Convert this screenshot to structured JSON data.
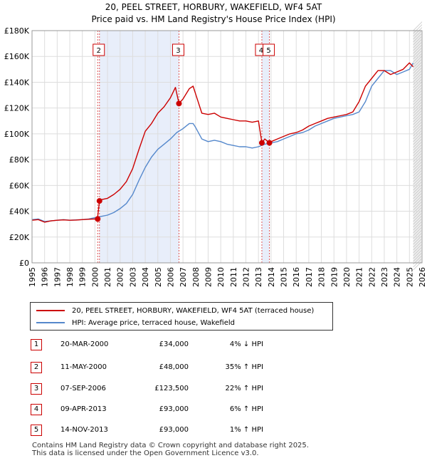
{
  "chart_data": {
    "type": "line",
    "title": "20, PEEL STREET, HORBURY, WAKEFIELD, WF4 5AT",
    "subtitle": "Price paid vs. HM Land Registry's House Price Index (HPI)",
    "x_ticks": [
      "1995",
      "1996",
      "1997",
      "1998",
      "1999",
      "2000",
      "2001",
      "2002",
      "2003",
      "2004",
      "2005",
      "2006",
      "2007",
      "2008",
      "2009",
      "2010",
      "2011",
      "2012",
      "2013",
      "2014",
      "2015",
      "2016",
      "2017",
      "2018",
      "2019",
      "2020",
      "2021",
      "2022",
      "2023",
      "2024",
      "2025",
      "2026"
    ],
    "y_ticks": [
      "£0",
      "£20K",
      "£40K",
      "£60K",
      "£80K",
      "£100K",
      "£120K",
      "£140K",
      "£160K",
      "£180K"
    ],
    "xlim": [
      1995,
      2026
    ],
    "ylim": [
      0,
      180000
    ],
    "grid": true,
    "series": [
      {
        "name": "20, PEEL STREET, HORBURY, WAKEFIELD, WF4 5AT (terraced house)",
        "color": "#cc0000",
        "x": [
          1995.0,
          1995.5,
          1996.0,
          1996.5,
          1997.0,
          1997.5,
          1998.0,
          1998.5,
          1999.0,
          1999.5,
          2000.0,
          2000.2,
          2000.36,
          2000.5,
          2001.0,
          2001.5,
          2002.0,
          2002.5,
          2003.0,
          2003.5,
          2004.0,
          2004.5,
          2005.0,
          2005.5,
          2006.0,
          2006.4,
          2006.68,
          2007.0,
          2007.5,
          2007.8,
          2008.0,
          2008.5,
          2009.0,
          2009.5,
          2010.0,
          2010.5,
          2011.0,
          2011.5,
          2012.0,
          2012.5,
          2013.0,
          2013.27,
          2013.5,
          2013.87,
          2014.0,
          2014.5,
          2015.0,
          2015.5,
          2016.0,
          2016.5,
          2017.0,
          2017.5,
          2018.0,
          2018.5,
          2019.0,
          2019.5,
          2020.0,
          2020.5,
          2021.0,
          2021.5,
          2022.0,
          2022.5,
          2023.0,
          2023.5,
          2024.0,
          2024.5,
          2025.0,
          2025.3
        ],
        "values": [
          33000,
          33500,
          31500,
          32500,
          33000,
          33300,
          33000,
          33200,
          33500,
          33800,
          34000,
          34000,
          48000,
          49000,
          50000,
          53000,
          57000,
          63000,
          73000,
          88000,
          102000,
          108000,
          116000,
          121000,
          128000,
          136000,
          123500,
          127000,
          135000,
          137000,
          131000,
          116000,
          115000,
          116000,
          113000,
          112000,
          111000,
          110000,
          110000,
          109000,
          110000,
          93000,
          96000,
          93000,
          94000,
          96000,
          98000,
          100000,
          101000,
          103000,
          106000,
          108000,
          110000,
          112000,
          113000,
          114000,
          115000,
          117000,
          125000,
          137000,
          143000,
          149000,
          149000,
          146000,
          148000,
          150000,
          155000,
          152000
        ]
      },
      {
        "name": "HPI: Average price, terraced house, Wakefield",
        "color": "#5588cc",
        "x": [
          1995.0,
          1995.5,
          1996.0,
          1996.5,
          1997.0,
          1997.5,
          1998.0,
          1998.5,
          1999.0,
          1999.5,
          2000.0,
          2000.5,
          2001.0,
          2001.5,
          2002.0,
          2002.5,
          2003.0,
          2003.5,
          2004.0,
          2004.5,
          2005.0,
          2005.5,
          2006.0,
          2006.5,
          2007.0,
          2007.5,
          2007.8,
          2008.0,
          2008.5,
          2009.0,
          2009.5,
          2010.0,
          2010.5,
          2011.0,
          2011.5,
          2012.0,
          2012.5,
          2013.0,
          2013.5,
          2014.0,
          2014.5,
          2015.0,
          2015.5,
          2016.0,
          2016.5,
          2017.0,
          2017.5,
          2018.0,
          2018.5,
          2019.0,
          2019.5,
          2020.0,
          2020.5,
          2021.0,
          2021.5,
          2022.0,
          2022.5,
          2023.0,
          2023.5,
          2024.0,
          2024.5,
          2025.0,
          2025.3
        ],
        "values": [
          33500,
          34000,
          32000,
          32500,
          33000,
          33500,
          33000,
          33300,
          33500,
          34000,
          35000,
          36000,
          37000,
          39000,
          42000,
          46000,
          53000,
          64000,
          74000,
          82000,
          88000,
          92000,
          96000,
          101000,
          104000,
          108000,
          108000,
          105000,
          96000,
          94000,
          95000,
          94000,
          92000,
          91000,
          90000,
          90000,
          89000,
          90000,
          92000,
          93000,
          94000,
          96000,
          98000,
          100000,
          101000,
          103000,
          106000,
          108000,
          110000,
          112000,
          113000,
          114000,
          115000,
          117000,
          125000,
          137000,
          143000,
          149000,
          149000,
          146000,
          148000,
          150000,
          155000
        ]
      }
    ],
    "sales": [
      {
        "num": "1",
        "x": 2000.22,
        "value": 34000
      },
      {
        "num": "2",
        "x": 2000.36,
        "value": 48000
      },
      {
        "num": "3",
        "x": 2006.68,
        "value": 123500
      },
      {
        "num": "4",
        "x": 2013.27,
        "value": 93000
      },
      {
        "num": "5",
        "x": 2013.87,
        "value": 93000
      }
    ],
    "top_labels": [
      {
        "num": "2",
        "x": 2000.36
      },
      {
        "num": "3",
        "x": 2006.68
      },
      {
        "num": "4",
        "x": 2013.27
      },
      {
        "num": "5",
        "x": 2013.87
      }
    ],
    "shaded_spans": [
      [
        2000.36,
        2006.68
      ],
      [
        2013.27,
        2013.87
      ]
    ],
    "future_start": 2025.3
  },
  "legend": {
    "series1": "20, PEEL STREET, HORBURY, WAKEFIELD, WF4 5AT (terraced house)",
    "series2": "HPI: Average price, terraced house, Wakefield"
  },
  "sales_table": [
    {
      "num": "1",
      "date": "20-MAR-2000",
      "price": "£34,000",
      "hpi": "4% ↓ HPI"
    },
    {
      "num": "2",
      "date": "11-MAY-2000",
      "price": "£48,000",
      "hpi": "35% ↑ HPI"
    },
    {
      "num": "3",
      "date": "07-SEP-2006",
      "price": "£123,500",
      "hpi": "22% ↑ HPI"
    },
    {
      "num": "4",
      "date": "09-APR-2013",
      "price": "£93,000",
      "hpi": "6% ↑ HPI"
    },
    {
      "num": "5",
      "date": "14-NOV-2013",
      "price": "£93,000",
      "hpi": "1% ↑ HPI"
    }
  ],
  "footer": {
    "line1": "Contains HM Land Registry data © Crown copyright and database right 2025.",
    "line2": "This data is licensed under the Open Government Licence v3.0."
  }
}
